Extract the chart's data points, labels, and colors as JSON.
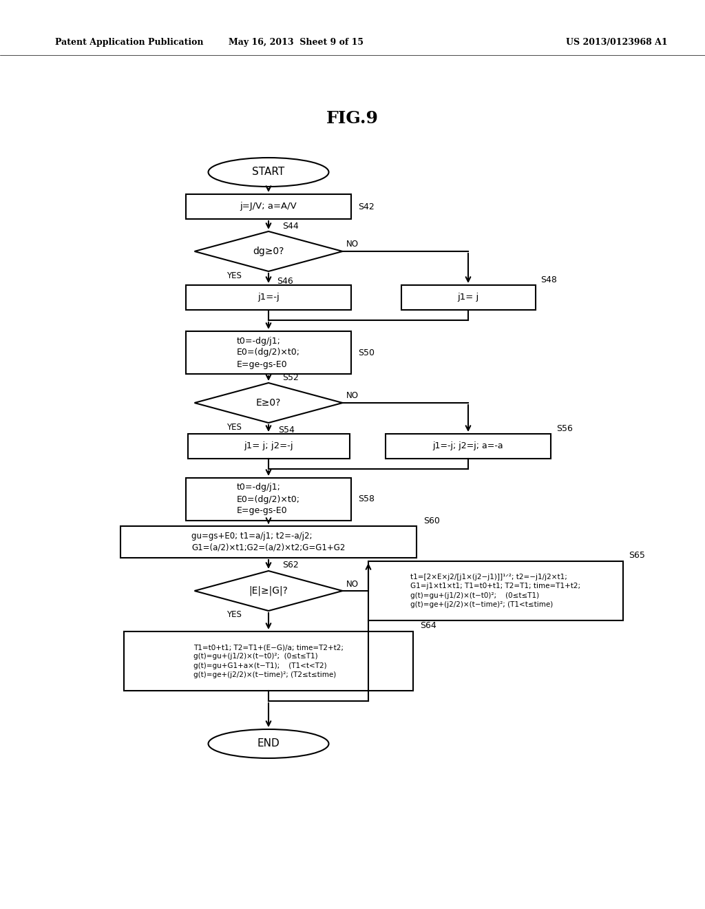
{
  "title": "FIG.9",
  "header_left": "Patent Application Publication",
  "header_mid": "May 16, 2013  Sheet 9 of 15",
  "header_right": "US 2013/0123968 A1",
  "bg_color": "#ffffff",
  "text_color": "#000000",
  "lw": 1.5
}
